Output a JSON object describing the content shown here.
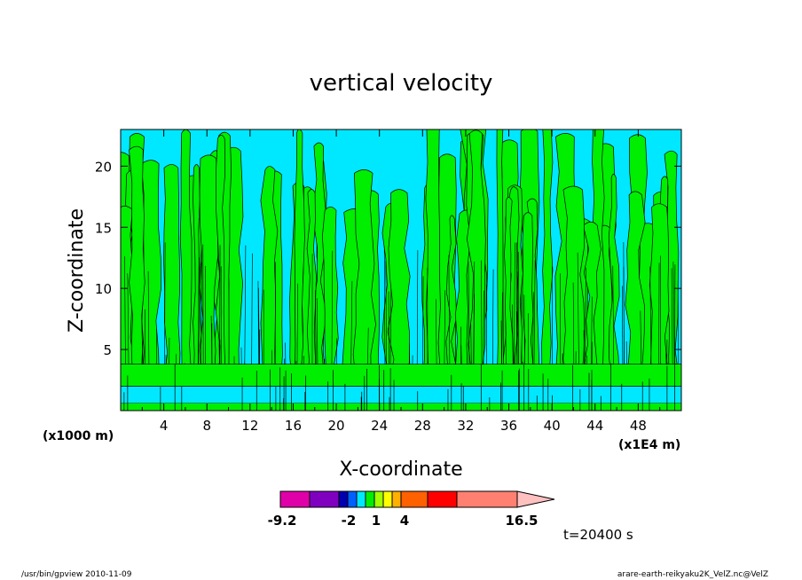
{
  "chart_data": {
    "type": "heatmap",
    "title": "vertical velocity",
    "xlabel": "X-coordinate",
    "ylabel": "Z-coordinate",
    "x_unit_label": "(x1000 m)",
    "x_secondary_unit_label": "(x1E4 m)",
    "xlim": [
      0,
      52
    ],
    "ylim": [
      0,
      23
    ],
    "x_ticks": [
      4,
      8,
      12,
      16,
      20,
      24,
      28,
      32,
      36,
      40,
      44,
      48
    ],
    "y_ticks": [
      5,
      10,
      15,
      20
    ],
    "field_colors": {
      "negative_weak": "#00e8ff",
      "positive_weak": "#00ee00"
    },
    "colorbar": {
      "min_label": "-9.2",
      "max_label": "16.5",
      "labels": [
        "-9.2",
        "-2",
        "1",
        "4",
        "16.5"
      ],
      "colors": [
        "#e000a8",
        "#8000c0",
        "#0000b0",
        "#0060ff",
        "#00e8ff",
        "#00ee00",
        "#a0ff00",
        "#ffff00",
        "#ffb000",
        "#ff6000",
        "#ff0000",
        "#ff8070",
        "#ffc0c0"
      ]
    },
    "annotation": "t=20400 s"
  },
  "footer": {
    "left": "/usr/bin/gpview   2010-11-09",
    "right": "arare-earth-reikyaku2K_VelZ.nc@VelZ"
  }
}
